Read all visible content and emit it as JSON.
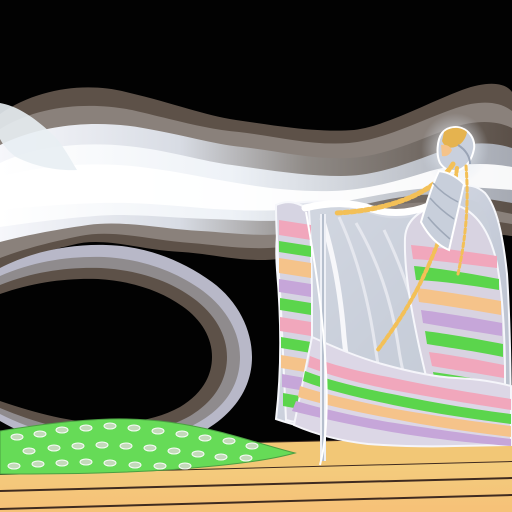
{
  "artwork": {
    "subject": "",
    "palette": {
      "sky": "#020202",
      "cloud_dark": "#5e5247",
      "cloud_mid": "#a39f9b",
      "cloud_light": "#e9eef4",
      "gown": "#cfd2dc",
      "gown_shadow": "#a9b1c0",
      "pink": "#f2a4b8",
      "lilac": "#c6a6d9",
      "green": "#58d84d",
      "peach": "#f4c48a",
      "gold": "#e8b14a",
      "stage": "#f5c57b",
      "stage_line": "#3f2b20"
    }
  }
}
